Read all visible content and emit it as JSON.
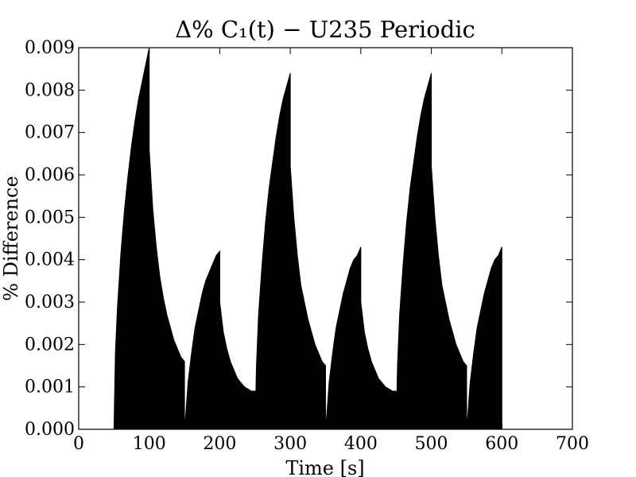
{
  "chart_data": {
    "type": "area",
    "title": "Δ% C₁(t) − U235 Periodic",
    "xlabel": "Time [s]",
    "ylabel": "% Difference",
    "xlim": [
      0,
      700
    ],
    "ylim": [
      0,
      0.009
    ],
    "grid": false,
    "xticks": [
      0,
      100,
      200,
      300,
      400,
      500,
      600,
      700
    ],
    "xtick_labels": [
      "0",
      "100",
      "200",
      "300",
      "400",
      "500",
      "600",
      "700"
    ],
    "yticks": [
      0,
      0.001,
      0.002,
      0.003,
      0.004,
      0.005,
      0.006,
      0.007,
      0.008,
      0.009
    ],
    "ytick_labels": [
      "0.000",
      "0.001",
      "0.002",
      "0.003",
      "0.004",
      "0.005",
      "0.006",
      "0.007",
      "0.008",
      "0.009"
    ],
    "fill_color": "#000000",
    "series": [
      {
        "x": [
          50,
          52,
          55,
          60,
          65,
          70,
          75,
          80,
          85,
          90,
          95,
          100,
          100,
          105,
          110,
          115,
          120,
          125,
          130,
          135,
          140,
          145,
          150,
          150,
          150,
          152,
          155,
          160,
          165,
          170,
          175,
          180,
          185,
          190,
          195,
          200,
          200,
          205,
          210,
          215,
          220,
          225,
          230,
          235,
          240,
          245,
          250,
          250,
          250,
          252,
          255,
          260,
          265,
          270,
          275,
          280,
          285,
          290,
          295,
          300,
          300,
          305,
          310,
          315,
          320,
          325,
          330,
          335,
          340,
          345,
          350,
          350,
          350,
          352,
          355,
          360,
          365,
          370,
          375,
          380,
          385,
          390,
          395,
          400,
          400,
          405,
          410,
          415,
          420,
          425,
          430,
          435,
          440,
          445,
          450,
          450,
          450,
          452,
          455,
          460,
          465,
          470,
          475,
          480,
          485,
          490,
          495,
          500,
          500,
          505,
          510,
          515,
          520,
          525,
          530,
          535,
          540,
          545,
          550,
          550,
          550,
          552,
          555,
          560,
          565,
          570,
          575,
          580,
          585,
          590,
          595,
          600,
          600
        ],
        "y": [
          0,
          0.0018,
          0.0029,
          0.0042,
          0.0052,
          0.006,
          0.0067,
          0.0073,
          0.0078,
          0.0082,
          0.0086,
          0.009,
          0.0066,
          0.0052,
          0.0043,
          0.0036,
          0.0031,
          0.0027,
          0.0024,
          0.0021,
          0.0019,
          0.0017,
          0.0016,
          0,
          0,
          0.0004,
          0.0011,
          0.0018,
          0.0024,
          0.0028,
          0.0032,
          0.0035,
          0.0037,
          0.0039,
          0.0041,
          0.0042,
          0.003,
          0.0023,
          0.0019,
          0.0016,
          0.0014,
          0.0012,
          0.0011,
          0.001,
          0.00095,
          0.0009,
          0.0009,
          0,
          0,
          0.0015,
          0.0027,
          0.0039,
          0.0049,
          0.0057,
          0.0063,
          0.0069,
          0.0074,
          0.0078,
          0.0081,
          0.0084,
          0.0062,
          0.005,
          0.0041,
          0.0034,
          0.003,
          0.0026,
          0.0023,
          0.002,
          0.0018,
          0.0016,
          0.0015,
          0,
          0,
          0.0004,
          0.0011,
          0.0018,
          0.0024,
          0.0028,
          0.0032,
          0.0035,
          0.0038,
          0.004,
          0.0041,
          0.0043,
          0.003,
          0.0023,
          0.0019,
          0.0016,
          0.0014,
          0.0012,
          0.0011,
          0.001,
          0.00095,
          0.0009,
          0.0009,
          0,
          0,
          0.0015,
          0.0027,
          0.0039,
          0.0049,
          0.0057,
          0.0063,
          0.0069,
          0.0074,
          0.0078,
          0.0081,
          0.0084,
          0.0062,
          0.005,
          0.0041,
          0.0034,
          0.003,
          0.0026,
          0.0023,
          0.002,
          0.0018,
          0.0016,
          0.0015,
          0,
          0,
          0.0004,
          0.0011,
          0.0018,
          0.0024,
          0.0028,
          0.0032,
          0.0035,
          0.0038,
          0.004,
          0.0041,
          0.0043,
          0
        ]
      }
    ]
  }
}
